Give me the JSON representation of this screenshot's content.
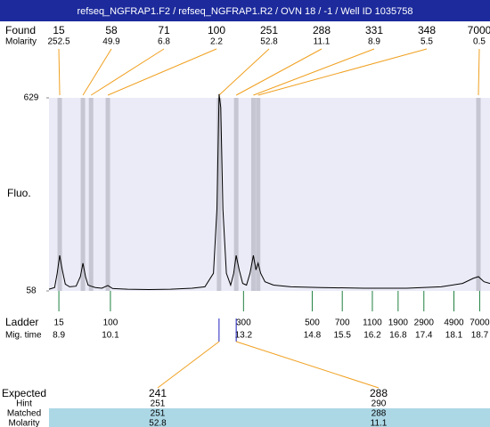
{
  "title": "refseq_NGFRAP1.F2 / refseq_NGFRAP1.R2 / OVN 18 / -1 / Well ID 1035758",
  "chart_data": {
    "type": "line",
    "y_label": "Fluo.",
    "xlim": [
      8.67,
      18.94
    ],
    "ylim": [
      58,
      629
    ],
    "yticks": [
      58,
      629
    ],
    "x": [
      8.67,
      8.8,
      8.86,
      8.92,
      8.98,
      9.05,
      9.15,
      9.3,
      9.4,
      9.46,
      9.52,
      9.58,
      9.65,
      9.75,
      9.9,
      10.04,
      10.15,
      10.5,
      11.0,
      11.5,
      12.0,
      12.3,
      12.5,
      12.58,
      12.63,
      12.67,
      12.72,
      12.8,
      12.9,
      12.97,
      13.03,
      13.1,
      13.18,
      13.27,
      13.35,
      13.43,
      13.49,
      13.54,
      13.6,
      13.7,
      13.9,
      14.3,
      15.0,
      16.0,
      17.0,
      17.8,
      18.3,
      18.55,
      18.67,
      18.8,
      18.94
    ],
    "series": [
      {
        "color": "#000000",
        "values": [
          63,
          68,
          110,
          163,
          120,
          78,
          70,
          72,
          100,
          140,
          100,
          75,
          72,
          68,
          66,
          74,
          65,
          63,
          62,
          63,
          66,
          70,
          110,
          300,
          640,
          600,
          300,
          110,
          75,
          110,
          163,
          120,
          80,
          75,
          110,
          163,
          120,
          140,
          110,
          85,
          75,
          70,
          68,
          66,
          66,
          70,
          80,
          95,
          100,
          85,
          80
        ]
      }
    ],
    "found": {
      "label": "Found",
      "sublabel": "Molarity",
      "sizes": [
        15,
        58,
        71,
        100,
        251,
        288,
        331,
        348,
        7000
      ],
      "molarity": [
        252.5,
        49.9,
        6.8,
        2.2,
        52.8,
        11.1,
        8.9,
        5.5,
        0.5
      ],
      "x": [
        8.92,
        9.46,
        9.65,
        10.04,
        12.63,
        13.03,
        13.43,
        13.54,
        18.67
      ]
    },
    "ladder": {
      "label": "Ladder",
      "sublabel": "Mig. time",
      "sizes": [
        15,
        100,
        300,
        500,
        700,
        1100,
        1900,
        2900,
        4900,
        7000
      ],
      "times": [
        8.9,
        10.1,
        13.2,
        14.8,
        15.5,
        16.2,
        16.8,
        17.4,
        18.1,
        18.7
      ]
    }
  },
  "expected": {
    "label": "Expected",
    "row_labels": [
      "Hint",
      "Matched",
      "Molarity"
    ],
    "columns": [
      {
        "expected": 241,
        "hint": 251,
        "matched": 251,
        "molarity": 52.8
      },
      {
        "expected": 288,
        "hint": 290,
        "matched": 288,
        "molarity": 11.1
      }
    ]
  }
}
